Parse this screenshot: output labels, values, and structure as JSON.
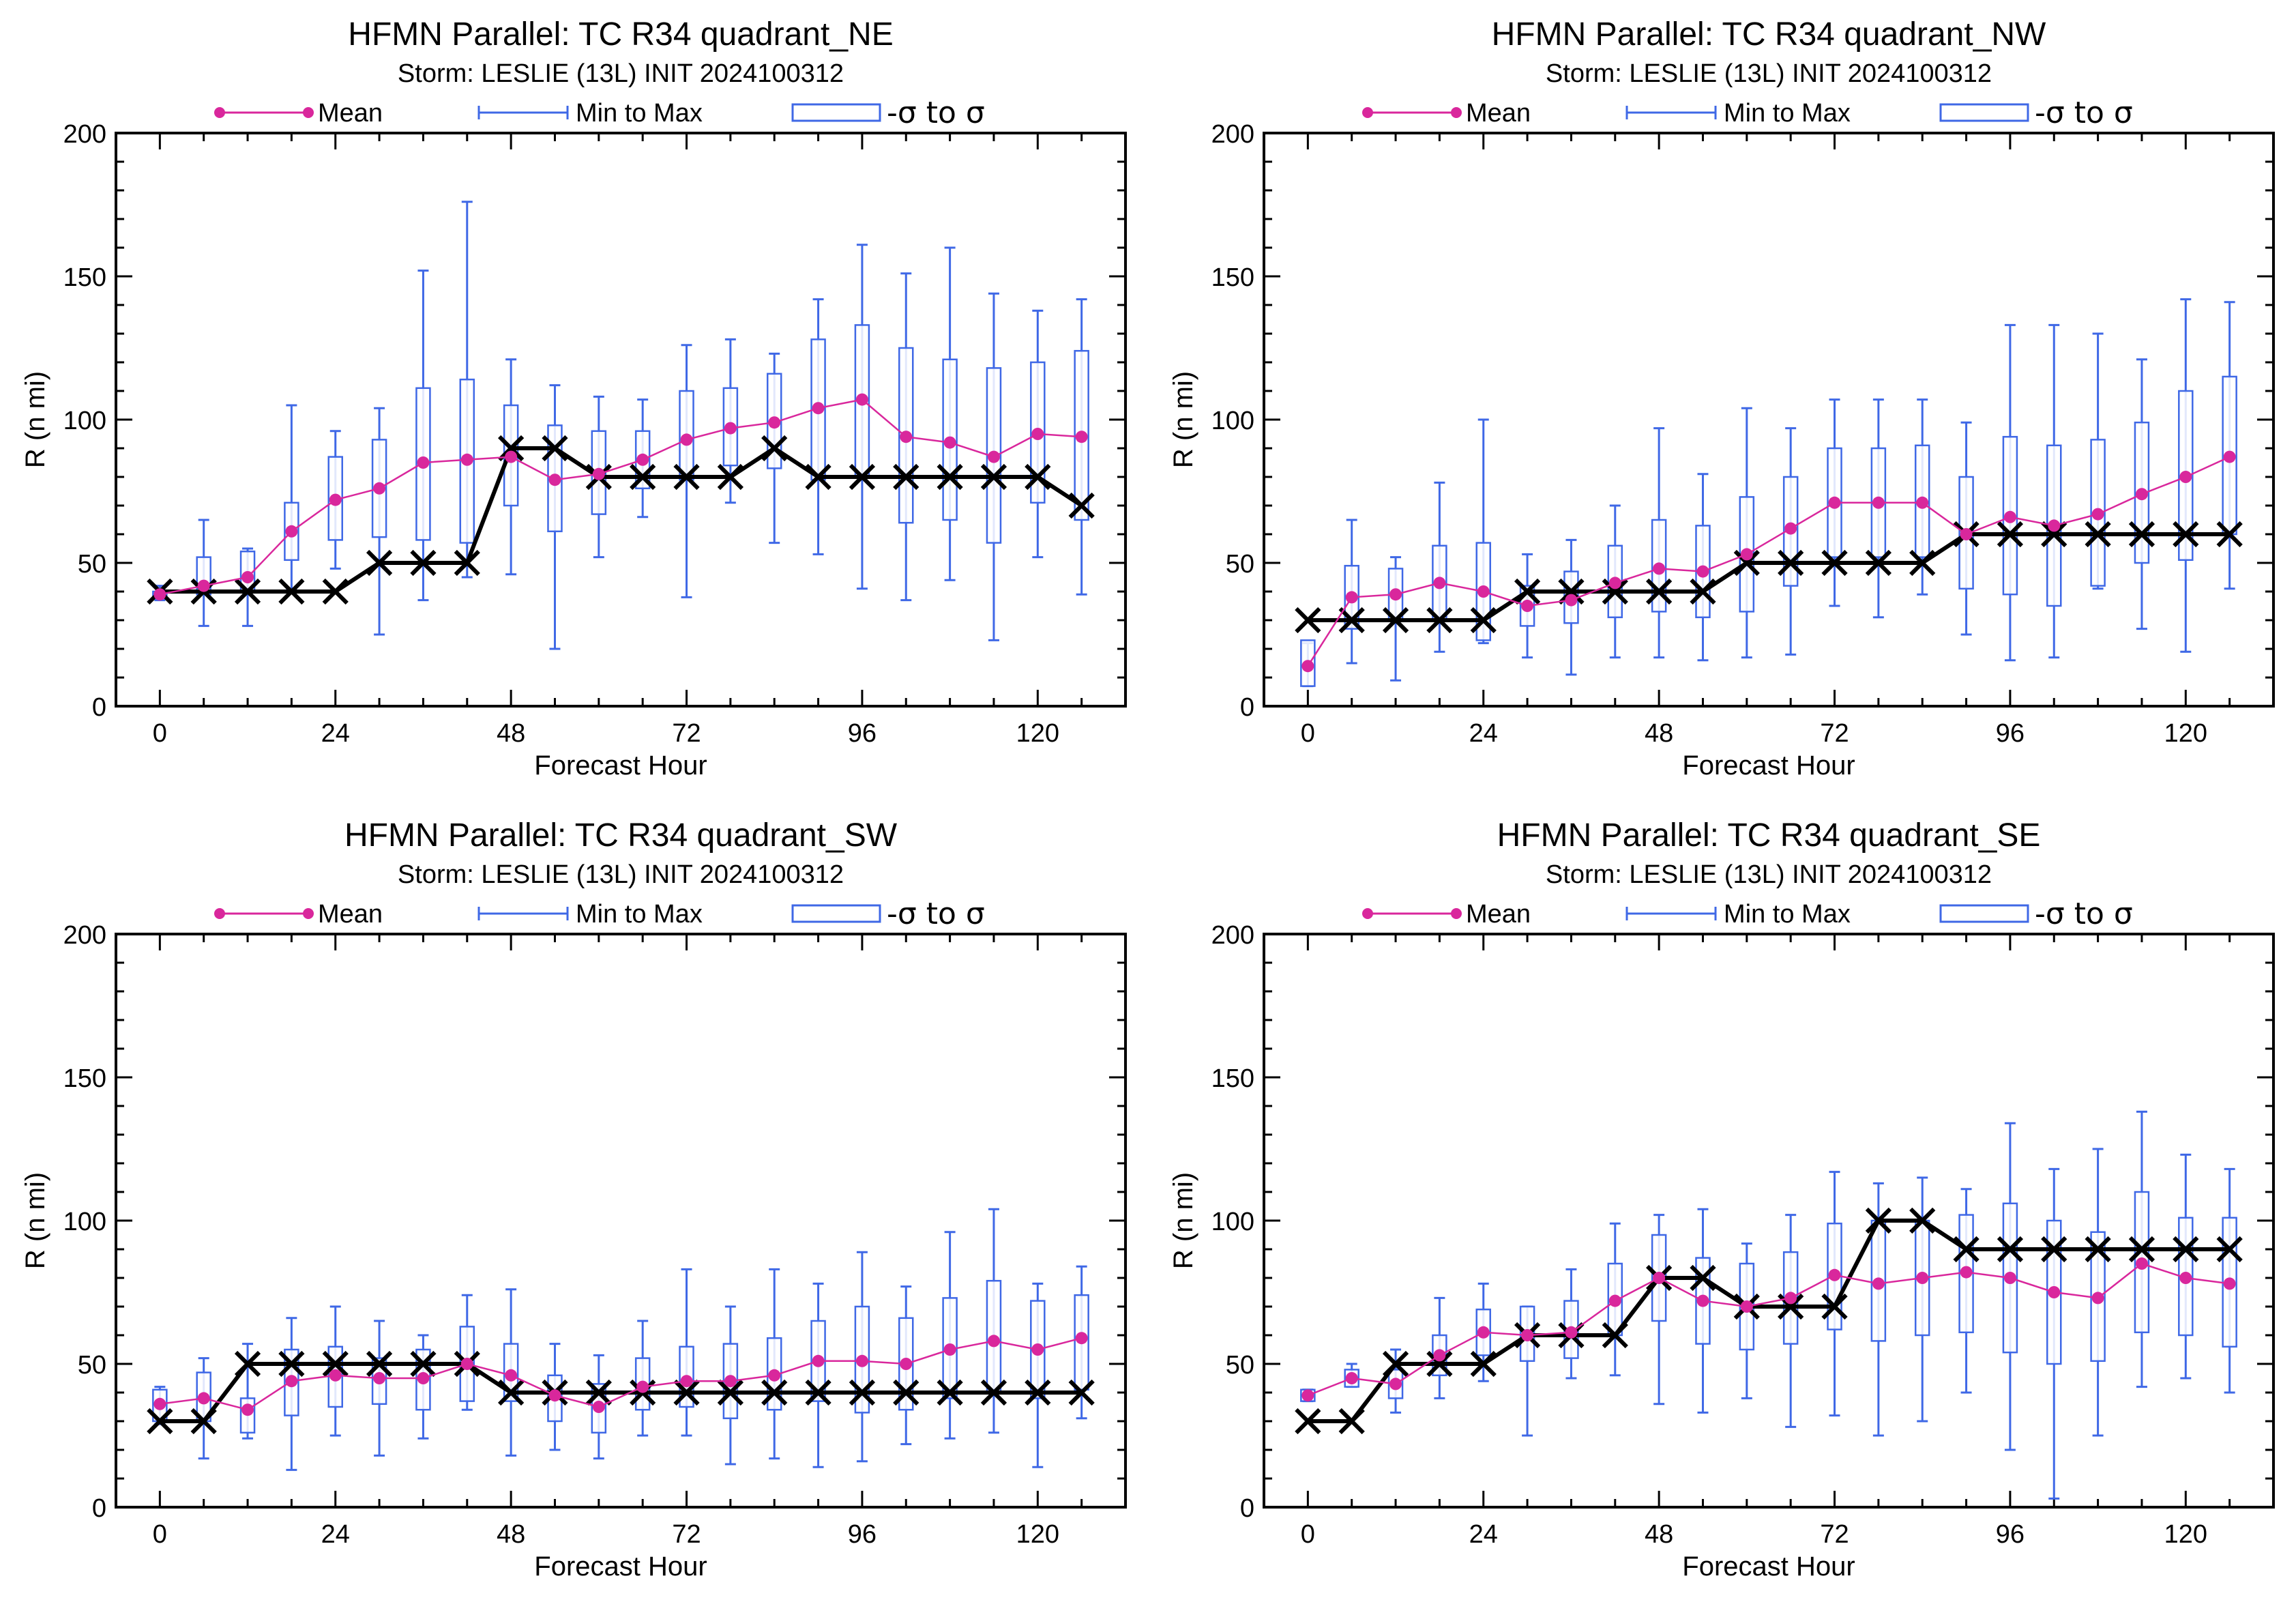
{
  "colors": {
    "mean": "#d9279c",
    "range": "#3f68e6",
    "observed": "#000000"
  },
  "chart_data": [
    {
      "type": "line",
      "title": "HFMN Parallel: TC  R34 quadrant_NE",
      "subtitle": "Storm: LESLIE (13L) INIT 2024100312",
      "legend": [
        "Mean",
        "Min to Max",
        "-σ to σ"
      ],
      "xlabel": "Forecast Hour",
      "ylabel": "R (n mi)",
      "xlim": [
        -6,
        132
      ],
      "ylim": [
        0,
        200
      ],
      "xticks": [
        "0",
        "24",
        "48",
        "72",
        "96",
        "120"
      ],
      "yticks": [
        "0",
        "50",
        "100",
        "150",
        "200"
      ],
      "x": [
        0,
        6,
        12,
        18,
        24,
        30,
        36,
        42,
        48,
        54,
        60,
        66,
        72,
        78,
        84,
        90,
        96,
        102,
        108,
        114,
        120,
        126
      ],
      "mean": [
        39,
        42,
        45,
        61,
        72,
        76,
        85,
        86,
        87,
        79,
        81,
        86,
        93,
        97,
        99,
        104,
        107,
        94,
        92,
        87,
        95,
        94
      ],
      "sd_low": [
        38,
        39,
        40,
        51,
        58,
        59,
        58,
        57,
        70,
        61,
        67,
        76,
        79,
        84,
        83,
        79,
        80,
        64,
        65,
        57,
        71,
        65
      ],
      "sd_high": [
        40,
        52,
        54,
        71,
        87,
        93,
        111,
        114,
        105,
        98,
        96,
        96,
        110,
        111,
        116,
        128,
        133,
        125,
        121,
        118,
        120,
        124
      ],
      "min": [
        37,
        28,
        28,
        41,
        48,
        25,
        37,
        45,
        46,
        20,
        52,
        66,
        38,
        71,
        57,
        53,
        41,
        37,
        44,
        23,
        52,
        39
      ],
      "max": [
        42,
        65,
        55,
        105,
        96,
        104,
        152,
        176,
        121,
        112,
        108,
        107,
        126,
        128,
        123,
        142,
        161,
        151,
        160,
        144,
        138,
        142
      ],
      "observed": [
        40,
        40,
        40,
        40,
        40,
        50,
        50,
        50,
        90,
        90,
        80,
        80,
        80,
        80,
        90,
        80,
        80,
        80,
        80,
        80,
        80,
        70
      ]
    },
    {
      "type": "line",
      "title": "HFMN Parallel: TC  R34 quadrant_NW",
      "subtitle": "Storm: LESLIE (13L) INIT 2024100312",
      "legend": [
        "Mean",
        "Min to Max",
        "-σ to σ"
      ],
      "xlabel": "Forecast Hour",
      "ylabel": "R (n mi)",
      "xlim": [
        -6,
        132
      ],
      "ylim": [
        0,
        200
      ],
      "xticks": [
        "0",
        "24",
        "48",
        "72",
        "96",
        "120"
      ],
      "yticks": [
        "0",
        "50",
        "100",
        "150",
        "200"
      ],
      "x": [
        0,
        6,
        12,
        18,
        24,
        30,
        36,
        42,
        48,
        54,
        60,
        66,
        72,
        78,
        84,
        90,
        96,
        102,
        108,
        114,
        120,
        126
      ],
      "mean": [
        14,
        38,
        39,
        43,
        40,
        35,
        37,
        43,
        48,
        47,
        53,
        62,
        71,
        71,
        71,
        60,
        66,
        63,
        67,
        74,
        80,
        87
      ],
      "sd_low": [
        7,
        27,
        30,
        30,
        23,
        28,
        29,
        31,
        33,
        31,
        33,
        42,
        52,
        52,
        52,
        41,
        39,
        35,
        42,
        50,
        51,
        60
      ],
      "sd_high": [
        23,
        49,
        48,
        56,
        57,
        42,
        47,
        56,
        65,
        63,
        73,
        80,
        90,
        90,
        91,
        80,
        94,
        91,
        93,
        99,
        110,
        115
      ],
      "min": [
        7,
        15,
        9,
        19,
        22,
        17,
        11,
        17,
        17,
        16,
        17,
        18,
        35,
        31,
        39,
        25,
        16,
        17,
        41,
        27,
        19,
        41
      ],
      "max": [
        22,
        65,
        52,
        78,
        100,
        53,
        58,
        70,
        97,
        81,
        104,
        97,
        107,
        107,
        107,
        99,
        133,
        133,
        130,
        121,
        142,
        141
      ],
      "observed": [
        30,
        30,
        30,
        30,
        30,
        40,
        40,
        40,
        40,
        40,
        50,
        50,
        50,
        50,
        50,
        60,
        60,
        60,
        60,
        60,
        60,
        60
      ]
    },
    {
      "type": "line",
      "title": "HFMN Parallel: TC  R34 quadrant_SW",
      "subtitle": "Storm: LESLIE (13L) INIT 2024100312",
      "legend": [
        "Mean",
        "Min to Max",
        "-σ to σ"
      ],
      "xlabel": "Forecast Hour",
      "ylabel": "R (n mi)",
      "xlim": [
        -6,
        132
      ],
      "ylim": [
        0,
        200
      ],
      "xticks": [
        "0",
        "24",
        "48",
        "72",
        "96",
        "120"
      ],
      "yticks": [
        "0",
        "50",
        "100",
        "150",
        "200"
      ],
      "x": [
        0,
        6,
        12,
        18,
        24,
        30,
        36,
        42,
        48,
        54,
        60,
        66,
        72,
        78,
        84,
        90,
        96,
        102,
        108,
        114,
        120,
        126
      ],
      "mean": [
        36,
        38,
        34,
        44,
        46,
        45,
        45,
        50,
        46,
        39,
        35,
        42,
        44,
        44,
        46,
        51,
        51,
        50,
        55,
        58,
        55,
        59
      ],
      "sd_low": [
        30,
        30,
        26,
        32,
        35,
        36,
        34,
        37,
        37,
        30,
        26,
        34,
        35,
        31,
        34,
        37,
        33,
        34,
        38,
        40,
        38,
        41
      ],
      "sd_high": [
        41,
        47,
        38,
        55,
        56,
        52,
        55,
        63,
        57,
        46,
        43,
        52,
        56,
        57,
        59,
        65,
        70,
        66,
        73,
        79,
        72,
        74
      ],
      "min": [
        29,
        17,
        24,
        13,
        25,
        18,
        24,
        34,
        18,
        20,
        17,
        25,
        25,
        15,
        17,
        14,
        16,
        22,
        24,
        26,
        14,
        31
      ],
      "max": [
        42,
        52,
        57,
        66,
        70,
        65,
        60,
        74,
        76,
        57,
        53,
        65,
        83,
        70,
        83,
        78,
        89,
        77,
        96,
        104,
        78,
        84
      ],
      "observed": [
        30,
        30,
        50,
        50,
        50,
        50,
        50,
        50,
        40,
        40,
        40,
        40,
        40,
        40,
        40,
        40,
        40,
        40,
        40,
        40,
        40,
        40
      ]
    },
    {
      "type": "line",
      "title": "HFMN Parallel: TC  R34 quadrant_SE",
      "subtitle": "Storm: LESLIE (13L) INIT 2024100312",
      "legend": [
        "Mean",
        "Min to Max",
        "-σ to σ"
      ],
      "xlabel": "Forecast Hour",
      "ylabel": "R (n mi)",
      "xlim": [
        -6,
        132
      ],
      "ylim": [
        0,
        200
      ],
      "xticks": [
        "0",
        "24",
        "48",
        "72",
        "96",
        "120"
      ],
      "yticks": [
        "0",
        "50",
        "100",
        "150",
        "200"
      ],
      "x": [
        0,
        6,
        12,
        18,
        24,
        30,
        36,
        42,
        48,
        54,
        60,
        66,
        72,
        78,
        84,
        90,
        96,
        102,
        108,
        114,
        120,
        126
      ],
      "mean": [
        39,
        45,
        43,
        53,
        61,
        60,
        61,
        72,
        80,
        72,
        70,
        73,
        81,
        78,
        80,
        82,
        80,
        75,
        73,
        85,
        80,
        78
      ],
      "sd_low": [
        37,
        42,
        38,
        46,
        53,
        51,
        52,
        60,
        65,
        57,
        55,
        57,
        62,
        58,
        60,
        61,
        54,
        50,
        51,
        61,
        60,
        56
      ],
      "sd_high": [
        41,
        48,
        48,
        60,
        69,
        70,
        72,
        85,
        95,
        87,
        85,
        89,
        99,
        100,
        100,
        102,
        106,
        100,
        96,
        110,
        101,
        101
      ],
      "min": [
        37,
        42,
        33,
        38,
        44,
        25,
        45,
        46,
        36,
        33,
        38,
        28,
        32,
        25,
        30,
        40,
        20,
        3,
        25,
        42,
        45,
        40
      ],
      "max": [
        41,
        50,
        55,
        73,
        78,
        70,
        83,
        99,
        102,
        104,
        92,
        102,
        117,
        113,
        115,
        111,
        134,
        118,
        125,
        138,
        123,
        118
      ],
      "observed": [
        30,
        30,
        50,
        50,
        50,
        60,
        60,
        60,
        80,
        80,
        70,
        70,
        70,
        100,
        100,
        90,
        90,
        90,
        90,
        90,
        90,
        90
      ]
    }
  ]
}
